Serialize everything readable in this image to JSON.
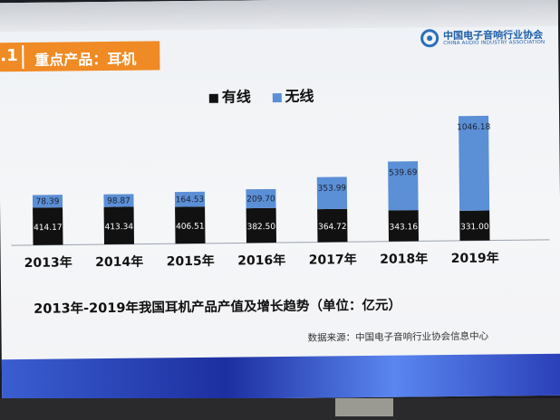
{
  "slide": {
    "section_number": ".1",
    "section_title": "重点产品：耳机",
    "logo_cn": "中国电子音响行业协会",
    "logo_en": "CHINA AUDIO INDUSTRY ASSOCIATION",
    "caption": "2013年-2019年我国耳机产品产值及增长趋势（单位：亿元）",
    "source": "数据来源：中国电子音响行业协会信息中心"
  },
  "colors": {
    "wired": "#111111",
    "wireless": "#5b8fd6",
    "header_orange": "#f08a24"
  },
  "chart_data": {
    "type": "bar",
    "stacked": true,
    "categories": [
      "2013年",
      "2014年",
      "2015年",
      "2016年",
      "2017年",
      "2018年",
      "2019年"
    ],
    "series": [
      {
        "name": "有线",
        "values": [
          414.17,
          413.34,
          406.51,
          382.5,
          364.72,
          343.16,
          331.0
        ]
      },
      {
        "name": "无线",
        "values": [
          78.39,
          98.87,
          164.53,
          209.7,
          353.99,
          539.69,
          1046.18
        ]
      }
    ],
    "data_labels": {
      "wired": [
        "414.17",
        "413.34",
        "406.51",
        "382.50",
        "364.72",
        "343.16",
        "331.00"
      ],
      "wireless": [
        "78.39",
        "98.87",
        "164.53",
        "209.70",
        "353.99",
        "539.69",
        "1046.18"
      ]
    },
    "title": "",
    "xlabel": "",
    "ylabel": "",
    "ylim": [
      0,
      1400
    ],
    "grid": false,
    "legend_position": "top-center"
  }
}
